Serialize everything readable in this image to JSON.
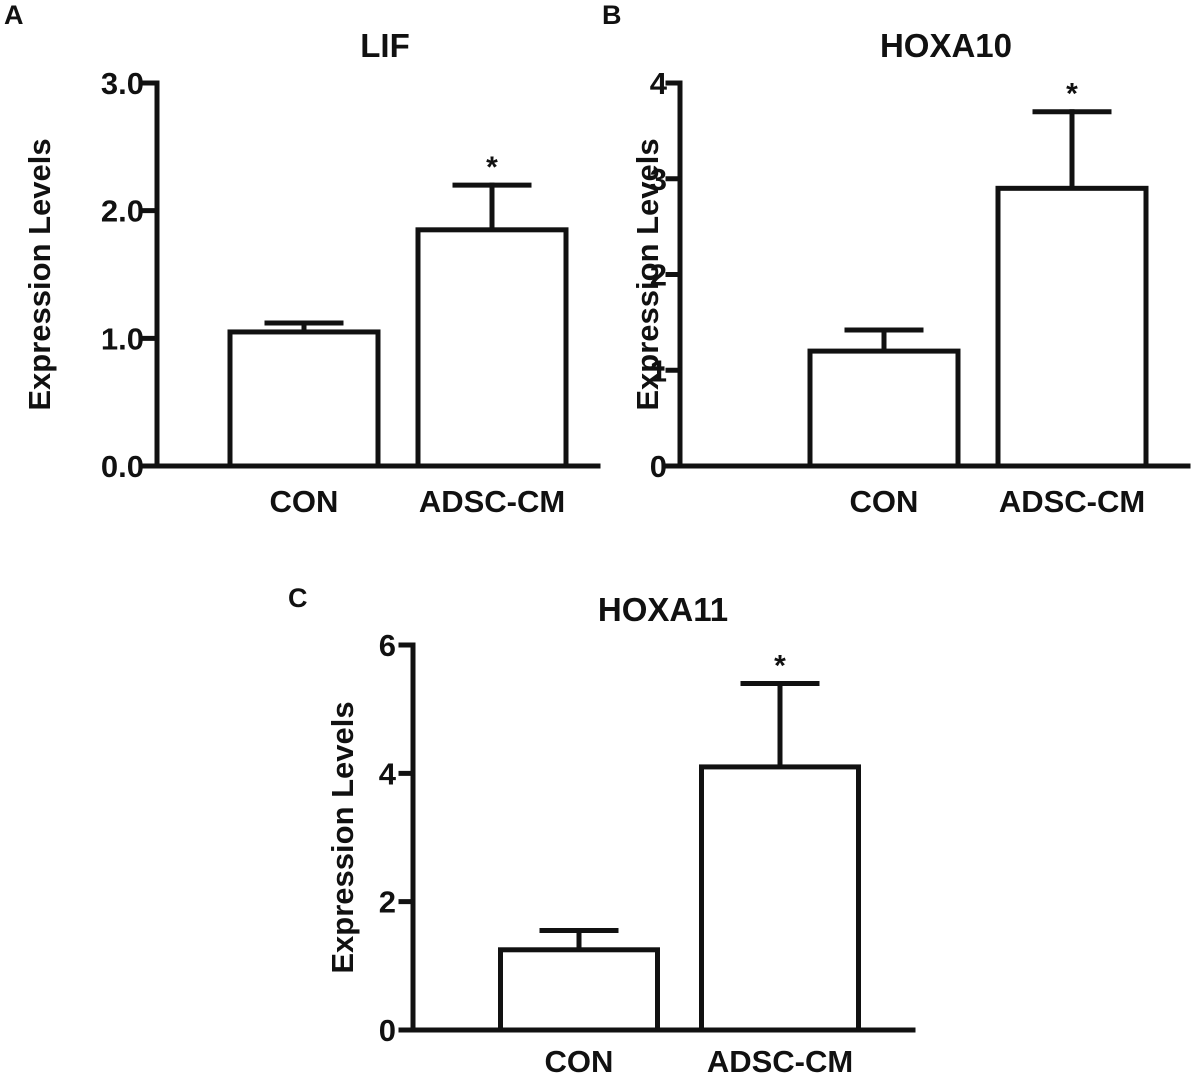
{
  "figure": {
    "panels": [
      {
        "letter": "A"
      },
      {
        "letter": "B"
      },
      {
        "letter": "C"
      }
    ]
  },
  "chart_data": [
    {
      "type": "bar",
      "title": "LIF",
      "ylabel": "Expression Levels",
      "xlabel": "",
      "categories": [
        "CON",
        "ADSC-CM"
      ],
      "values": [
        1.05,
        1.85
      ],
      "error_upper": [
        0.07,
        0.35
      ],
      "significance": [
        "",
        "*"
      ],
      "ylim": [
        0,
        3.0
      ],
      "yticks": [
        0,
        1,
        2,
        3
      ],
      "ytick_labels": [
        "0.0",
        "1.0",
        "2.0",
        "3.0"
      ],
      "grid": false,
      "legend": "none"
    },
    {
      "type": "bar",
      "title": "HOXA10",
      "ylabel": "Expression Levels",
      "xlabel": "",
      "categories": [
        "CON",
        "ADSC-CM"
      ],
      "values": [
        1.2,
        2.9
      ],
      "error_upper": [
        0.22,
        0.8
      ],
      "significance": [
        "",
        "*"
      ],
      "ylim": [
        0,
        4
      ],
      "yticks": [
        0,
        1,
        2,
        3,
        4
      ],
      "ytick_labels": [
        "0",
        "1",
        "2",
        "3",
        "4"
      ],
      "grid": false,
      "legend": "none"
    },
    {
      "type": "bar",
      "title": "HOXA11",
      "ylabel": "Expression Levels",
      "xlabel": "",
      "categories": [
        "CON",
        "ADSC-CM"
      ],
      "values": [
        1.25,
        4.1
      ],
      "error_upper": [
        0.3,
        1.3
      ],
      "significance": [
        "",
        "*"
      ],
      "ylim": [
        0,
        6
      ],
      "yticks": [
        0,
        2,
        4,
        6
      ],
      "ytick_labels": [
        "0",
        "2",
        "4",
        "6"
      ],
      "grid": false,
      "legend": "none"
    }
  ]
}
